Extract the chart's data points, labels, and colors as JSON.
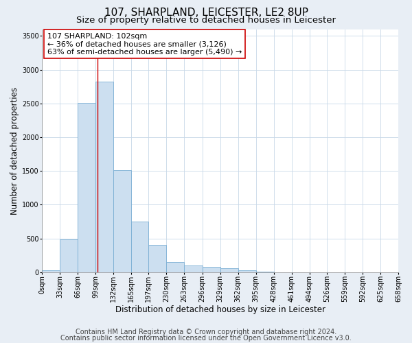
{
  "title": "107, SHARPLAND, LEICESTER, LE2 8UP",
  "subtitle": "Size of property relative to detached houses in Leicester",
  "xlabel": "Distribution of detached houses by size in Leicester",
  "ylabel": "Number of detached properties",
  "bin_edges": [
    0,
    33,
    66,
    99,
    132,
    165,
    197,
    230,
    263,
    296,
    329,
    362,
    395,
    428,
    461,
    494,
    526,
    559,
    592,
    625,
    658
  ],
  "bin_labels": [
    "0sqm",
    "33sqm",
    "66sqm",
    "99sqm",
    "132sqm",
    "165sqm",
    "197sqm",
    "230sqm",
    "263sqm",
    "296sqm",
    "329sqm",
    "362sqm",
    "395sqm",
    "428sqm",
    "461sqm",
    "494sqm",
    "526sqm",
    "559sqm",
    "592sqm",
    "625sqm",
    "658sqm"
  ],
  "bar_heights": [
    30,
    490,
    2510,
    2820,
    1510,
    750,
    400,
    155,
    100,
    75,
    60,
    25,
    5,
    0,
    0,
    0,
    0,
    0,
    0,
    0
  ],
  "bar_color": "#ccdff0",
  "bar_edge_color": "#7bafd4",
  "ylim": [
    0,
    3600
  ],
  "yticks": [
    0,
    500,
    1000,
    1500,
    2000,
    2500,
    3000,
    3500
  ],
  "property_value": 102,
  "property_line_color": "#cc0000",
  "annotation_line1": "107 SHARPLAND: 102sqm",
  "annotation_line2": "← 36% of detached houses are smaller (3,126)",
  "annotation_line3": "63% of semi-detached houses are larger (5,490) →",
  "annotation_box_color": "#ffffff",
  "annotation_border_color": "#cc0000",
  "footer_line1": "Contains HM Land Registry data © Crown copyright and database right 2024.",
  "footer_line2": "Contains public sector information licensed under the Open Government Licence v3.0.",
  "background_color": "#e8eef5",
  "plot_bg_color": "#ffffff",
  "grid_color": "#c8d8e8",
  "title_fontsize": 11,
  "subtitle_fontsize": 9.5,
  "axis_label_fontsize": 8.5,
  "tick_fontsize": 7,
  "annotation_fontsize": 8,
  "footer_fontsize": 7
}
